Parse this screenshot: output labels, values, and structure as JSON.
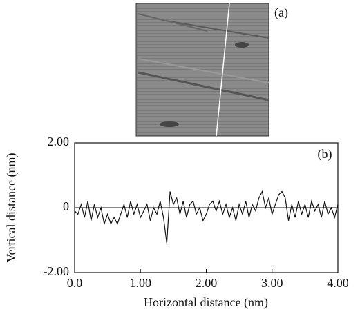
{
  "image_label": "(a)",
  "chart_data": {
    "type": "line",
    "annotation": "(b)",
    "x_label": "Horizontal distance (nm)",
    "y_label": "Vertical distance (nm)",
    "xlim": [
      0,
      4
    ],
    "ylim": [
      -2,
      2
    ],
    "xticks": [
      {
        "value": 0,
        "label": "0.0"
      },
      {
        "value": 1,
        "label": "1.00"
      },
      {
        "value": 2,
        "label": "2.00"
      },
      {
        "value": 3,
        "label": "3.00"
      },
      {
        "value": 4,
        "label": "4.00"
      }
    ],
    "yticks": [
      {
        "value": -2,
        "label": "-2.00"
      },
      0,
      {
        "value": 2,
        "label": "2.00"
      }
    ],
    "zero_line": true,
    "x": [
      0,
      0.05,
      0.1,
      0.15,
      0.2,
      0.25,
      0.3,
      0.35,
      0.4,
      0.45,
      0.5,
      0.55,
      0.6,
      0.65,
      0.7,
      0.75,
      0.8,
      0.85,
      0.9,
      0.95,
      1,
      1.05,
      1.1,
      1.15,
      1.2,
      1.25,
      1.3,
      1.35,
      1.4,
      1.45,
      1.5,
      1.55,
      1.6,
      1.65,
      1.7,
      1.75,
      1.8,
      1.85,
      1.9,
      1.95,
      2,
      2.05,
      2.1,
      2.15,
      2.2,
      2.25,
      2.3,
      2.35,
      2.4,
      2.45,
      2.5,
      2.55,
      2.6,
      2.65,
      2.7,
      2.75,
      2.8,
      2.85,
      2.9,
      2.95,
      3,
      3.05,
      3.1,
      3.15,
      3.2,
      3.25,
      3.3,
      3.35,
      3.4,
      3.45,
      3.5,
      3.55,
      3.6,
      3.65,
      3.7,
      3.75,
      3.8,
      3.85,
      3.9,
      3.95,
      4
    ],
    "series": [
      {
        "color": "#111111",
        "values": [
          -0.1,
          -0.2,
          0.1,
          -0.3,
          0.2,
          -0.4,
          0.1,
          -0.3,
          0,
          -0.5,
          -0.2,
          -0.5,
          -0.3,
          -0.5,
          -0.2,
          0.1,
          -0.3,
          0.2,
          -0.2,
          0.1,
          -0.3,
          -0.1,
          0.1,
          -0.4,
          0,
          -0.2,
          0.2,
          -0.3,
          -1.1,
          0.5,
          0.1,
          0.3,
          -0.2,
          0.2,
          -0.3,
          0.1,
          0.2,
          -0.2,
          0,
          -0.4,
          -0.2,
          0.1,
          0.2,
          -0.1,
          0.2,
          -0.2,
          0.1,
          -0.3,
          0,
          -0.4,
          0.1,
          -0.2,
          0.2,
          -0.3,
          0.1,
          -0.1,
          0.3,
          0.5,
          0,
          0.3,
          -0.2,
          0.1,
          0.4,
          0.5,
          0.3,
          -0.4,
          0.1,
          -0.3,
          0.2,
          -0.2,
          0.1,
          -0.3,
          0.2,
          -0.1,
          0.1,
          -0.3,
          0.2,
          -0.2,
          0,
          -0.3,
          0.1
        ]
      }
    ]
  }
}
